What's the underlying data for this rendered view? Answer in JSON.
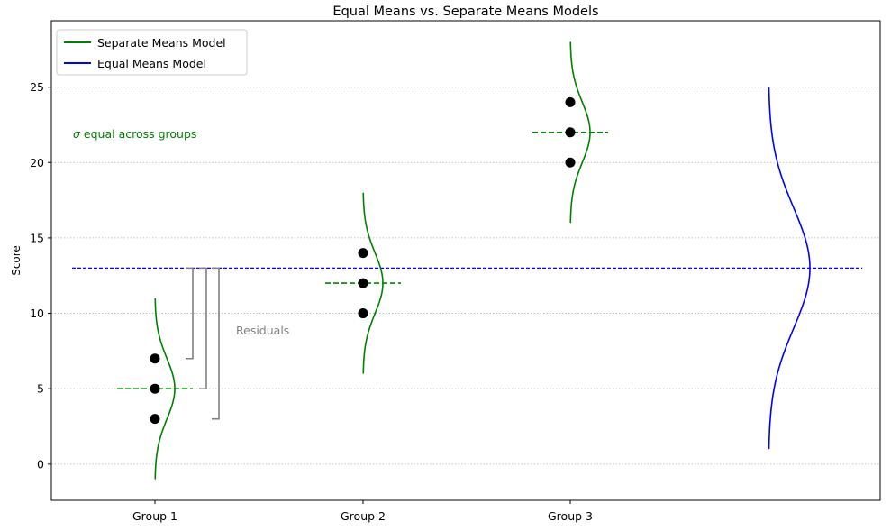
{
  "chart_data": {
    "type": "scatter",
    "title": "Equal Means vs. Separate Means Models",
    "xlabel": "",
    "ylabel": "Score",
    "categories": [
      "Group 1",
      "Group 2",
      "Group 3"
    ],
    "ylim": [
      -2.4,
      29.4
    ],
    "yticks": [
      0,
      5,
      10,
      15,
      20,
      25
    ],
    "grid": "horizontal dotted",
    "legend_position": "top-left",
    "colors": {
      "separate": "#008000",
      "equal": "#0000ff",
      "residual": "#808080",
      "points": "#000000",
      "grid": "#b0b0b0"
    },
    "points": [
      {
        "group": "Group 1",
        "values": [
          7,
          5,
          3
        ]
      },
      {
        "group": "Group 2",
        "values": [
          14,
          12,
          10
        ]
      },
      {
        "group": "Group 3",
        "values": [
          24,
          22,
          20
        ]
      }
    ],
    "series": [
      {
        "name": "Separate Means Model",
        "group_means": [
          5,
          12,
          22
        ],
        "distribution_range": 6
      },
      {
        "name": "Equal Means Model",
        "mean": 13,
        "distribution_range": 12
      }
    ],
    "residuals": {
      "label": "Residuals",
      "from_values": [
        7,
        5,
        3
      ],
      "to_value": 13
    },
    "annotations": [
      {
        "text": "σ equal across groups",
        "color": "#008000"
      }
    ]
  }
}
